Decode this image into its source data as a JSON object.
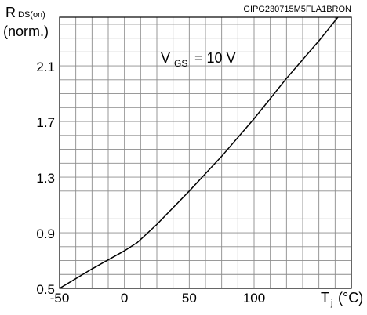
{
  "chart_data": {
    "type": "line",
    "watermark_code": "GIPG230715M5FLA1BRON",
    "ylabel": {
      "main": "R",
      "subscript": "DS(on)",
      "unit": "(norm.)"
    },
    "xlabel": {
      "main": "T",
      "subscript": "j",
      "unit": "(°C)"
    },
    "annotation": {
      "main": "V",
      "subscript": "GS",
      "value": "= 10 V"
    },
    "xlim": [
      -50,
      175
    ],
    "ylim": [
      0.5,
      2.45
    ],
    "x_ticks": [
      -50,
      0,
      50,
      100
    ],
    "x_tick_labels": [
      "-50",
      "0",
      "50",
      "100"
    ],
    "y_ticks": [
      0.5,
      0.9,
      1.3,
      1.7,
      2.1
    ],
    "y_tick_labels": [
      "0.5",
      "0.9",
      "1.3",
      "1.7",
      "2.1"
    ],
    "grid": true,
    "series": [
      {
        "points": [
          [
            -50,
            0.5
          ],
          [
            -25,
            0.64
          ],
          [
            0,
            0.77
          ],
          [
            10,
            0.83
          ],
          [
            25,
            0.96
          ],
          [
            50,
            1.2
          ],
          [
            75,
            1.45
          ],
          [
            100,
            1.72
          ],
          [
            125,
            2.01
          ],
          [
            150,
            2.28
          ],
          [
            175,
            2.57
          ]
        ]
      }
    ],
    "style": {
      "line_color": "#000000",
      "grid_color": "#8c8c8c",
      "frame_color": "#000000",
      "background": "#ffffff"
    }
  }
}
